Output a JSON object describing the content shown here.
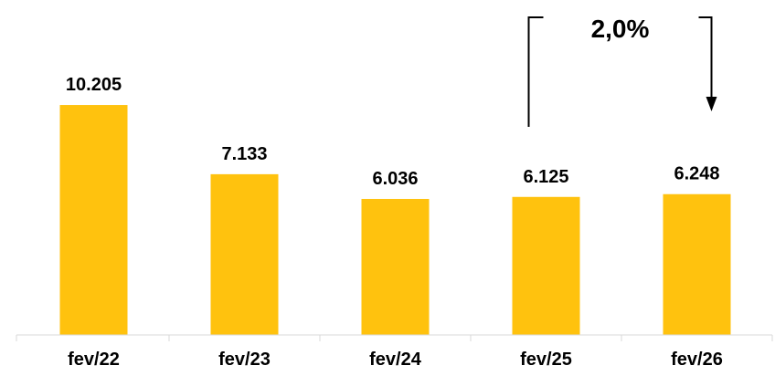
{
  "chart_data": {
    "type": "bar",
    "title": "",
    "xlabel": "",
    "ylabel": "",
    "categories": [
      "fev/22",
      "fev/23",
      "fev/24",
      "fev/25",
      "fev/26"
    ],
    "values": [
      10205,
      7133,
      6036,
      6125,
      6248
    ],
    "value_labels": [
      "10.205",
      "7.133",
      "6.036",
      "6.125",
      "6.248"
    ],
    "ylim": [
      0,
      14500
    ],
    "grid": false,
    "legend": "none",
    "bar_color": "#FFC20E",
    "annotations": [
      {
        "text": "2,0%",
        "from_category": "fev/25",
        "to_category": "fev/26"
      }
    ]
  }
}
